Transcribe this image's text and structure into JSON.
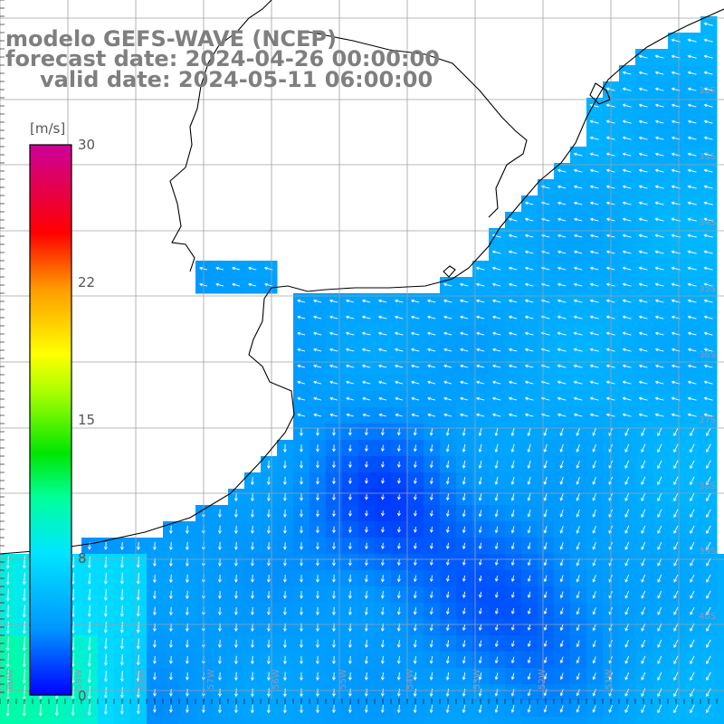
{
  "title": {
    "model": "modelo GEFS-WAVE (NCEP)",
    "forecast": "forecast date: 2024-04-26 00:00:00",
    "valid": "valid date: 2024-05-11 06:00:00"
  },
  "colorbar": {
    "unit": "[m/s]",
    "ticks": [
      "30",
      "22",
      "15",
      "8",
      "0"
    ],
    "range": [
      0,
      30
    ],
    "colors": [
      "#0000ff",
      "#0096ff",
      "#00e6ff",
      "#00ff99",
      "#00e600",
      "#aaff00",
      "#ffff00",
      "#ff9900",
      "#ff0000",
      "#cc0099"
    ]
  },
  "axes": {
    "lat_labels": [
      "32S",
      "33S",
      "34S",
      "35S",
      "36S",
      "37S",
      "38S",
      "39S",
      "40S"
    ],
    "lon_labels": [
      "60W",
      "59W",
      "58W",
      "57W",
      "56W",
      "55W",
      "54W",
      "53W",
      "52W",
      "51W"
    ]
  },
  "layers": {
    "land_color": "#ffffff",
    "coastline_color": "#000000",
    "grid_color": "#a0a0a0",
    "arrow_color": "#ffffff",
    "field": "wind speed and direction (arrows)"
  }
}
